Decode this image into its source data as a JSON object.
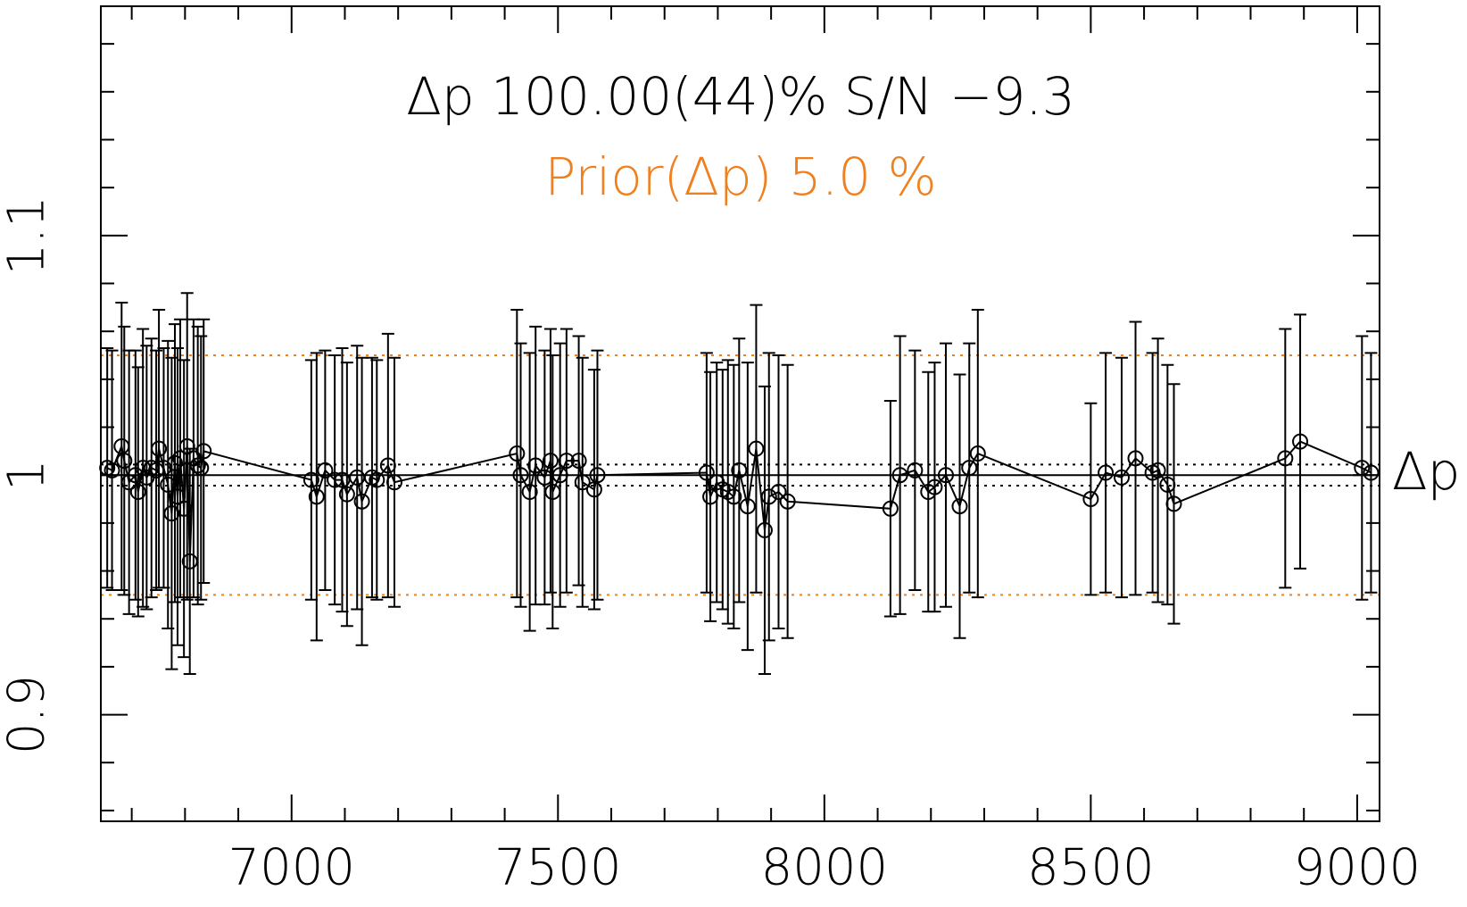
{
  "chart_data": {
    "type": "errorbar-line",
    "annotation": "Δp 100.00(44)% S/N −9.3",
    "prior_label": "Prior(Δp) 5.0 %",
    "series_label": "Δp",
    "color": "#000000",
    "prior_color": "#f07f1e",
    "reference": 1,
    "error_band": [
      0.9956,
      1.0044
    ],
    "prior_band": [
      0.95,
      1.05
    ],
    "xlim": [
      6642,
      9042
    ],
    "ylim": [
      0.8555,
      1.1957
    ],
    "xticks": [
      7000,
      7500,
      8000,
      8500,
      9000
    ],
    "yticks": [
      0.9,
      1,
      1.1
    ],
    "xminorticks": [
      6700,
      6800,
      6900,
      7100,
      7200,
      7300,
      7400,
      7600,
      7700,
      7800,
      7900,
      8100,
      8200,
      8300,
      8400,
      8600,
      8700,
      8800,
      8900
    ],
    "yminorticks": [
      0.86,
      0.88,
      0.92,
      0.94,
      0.96,
      0.98,
      1.02,
      1.04,
      1.06,
      1.08,
      1.12,
      1.14,
      1.16,
      1.18
    ],
    "x": [
      6654,
      6663,
      6681,
      6686,
      6695,
      6707,
      6712,
      6721,
      6728,
      6737,
      6746,
      6751,
      6760,
      6768,
      6775,
      6781,
      6786,
      6791,
      6798,
      6804,
      6809,
      6816,
      6824,
      6830,
      6835,
      7037,
      7047,
      7063,
      7081,
      7095,
      7104,
      7123,
      7132,
      7151,
      7160,
      7181,
      7193,
      7423,
      7430,
      7447,
      7458,
      7475,
      7486,
      7490,
      7504,
      7516,
      7539,
      7546,
      7568,
      7574,
      7779,
      7786,
      7798,
      7809,
      7819,
      7830,
      7840,
      7856,
      7872,
      7888,
      7896,
      7914,
      7931,
      8124,
      8142,
      8170,
      8195,
      8207,
      8228,
      8254,
      8272,
      8288,
      8500,
      8528,
      8558,
      8584,
      8616,
      8626,
      8644,
      8656,
      8865,
      8893,
      9009,
      9026
    ],
    "values": [
      1.003,
      1.002,
      1.012,
      1.006,
      0.997,
      1.0,
      0.993,
      1.003,
      0.999,
      1.003,
      1.002,
      1.011,
      1.003,
      0.996,
      0.984,
      1.005,
      0.991,
      1.007,
      0.986,
      1.012,
      0.964,
      1.007,
      1.004,
      1.003,
      1.01,
      0.998,
      0.991,
      1.002,
      0.998,
      0.998,
      0.992,
      0.999,
      0.989,
      0.999,
      0.998,
      1.004,
      0.997,
      1.009,
      1.0,
      0.993,
      1.004,
      0.999,
      1.006,
      0.993,
      1.0,
      1.006,
      1.006,
      0.997,
      0.994,
      1.0,
      1.001,
      0.991,
      0.997,
      0.994,
      0.993,
      0.991,
      1.002,
      0.987,
      1.011,
      0.977,
      0.991,
      0.993,
      0.989,
      0.986,
      1.0,
      1.002,
      0.993,
      0.995,
      1.0,
      0.987,
      1.003,
      1.009,
      0.99,
      1.001,
      0.999,
      1.007,
      1.001,
      1.002,
      0.996,
      0.988,
      1.007,
      1.014,
      1.003,
      1.001
    ],
    "errors": [
      0.05,
      0.05,
      0.06,
      0.056,
      0.055,
      0.052,
      0.052,
      0.058,
      0.055,
      0.054,
      0.05,
      0.058,
      0.05,
      0.06,
      0.065,
      0.058,
      0.062,
      0.058,
      0.062,
      0.064,
      0.047,
      0.058,
      0.058,
      0.055,
      0.055,
      0.05,
      0.06,
      0.05,
      0.052,
      0.055,
      0.055,
      0.055,
      0.06,
      0.05,
      0.05,
      0.055,
      0.052,
      0.06,
      0.055,
      0.058,
      0.058,
      0.053,
      0.055,
      0.057,
      0.055,
      0.055,
      0.052,
      0.052,
      0.05,
      0.052,
      0.05,
      0.052,
      0.05,
      0.05,
      0.055,
      0.055,
      0.055,
      0.06,
      0.06,
      0.06,
      0.06,
      0.057,
      0.057,
      0.045,
      0.058,
      0.05,
      0.05,
      0.052,
      0.055,
      0.055,
      0.052,
      0.06,
      0.04,
      0.05,
      0.05,
      0.057,
      0.05,
      0.055,
      0.05,
      0.05,
      0.054,
      0.053,
      0.055,
      0.05
    ]
  }
}
